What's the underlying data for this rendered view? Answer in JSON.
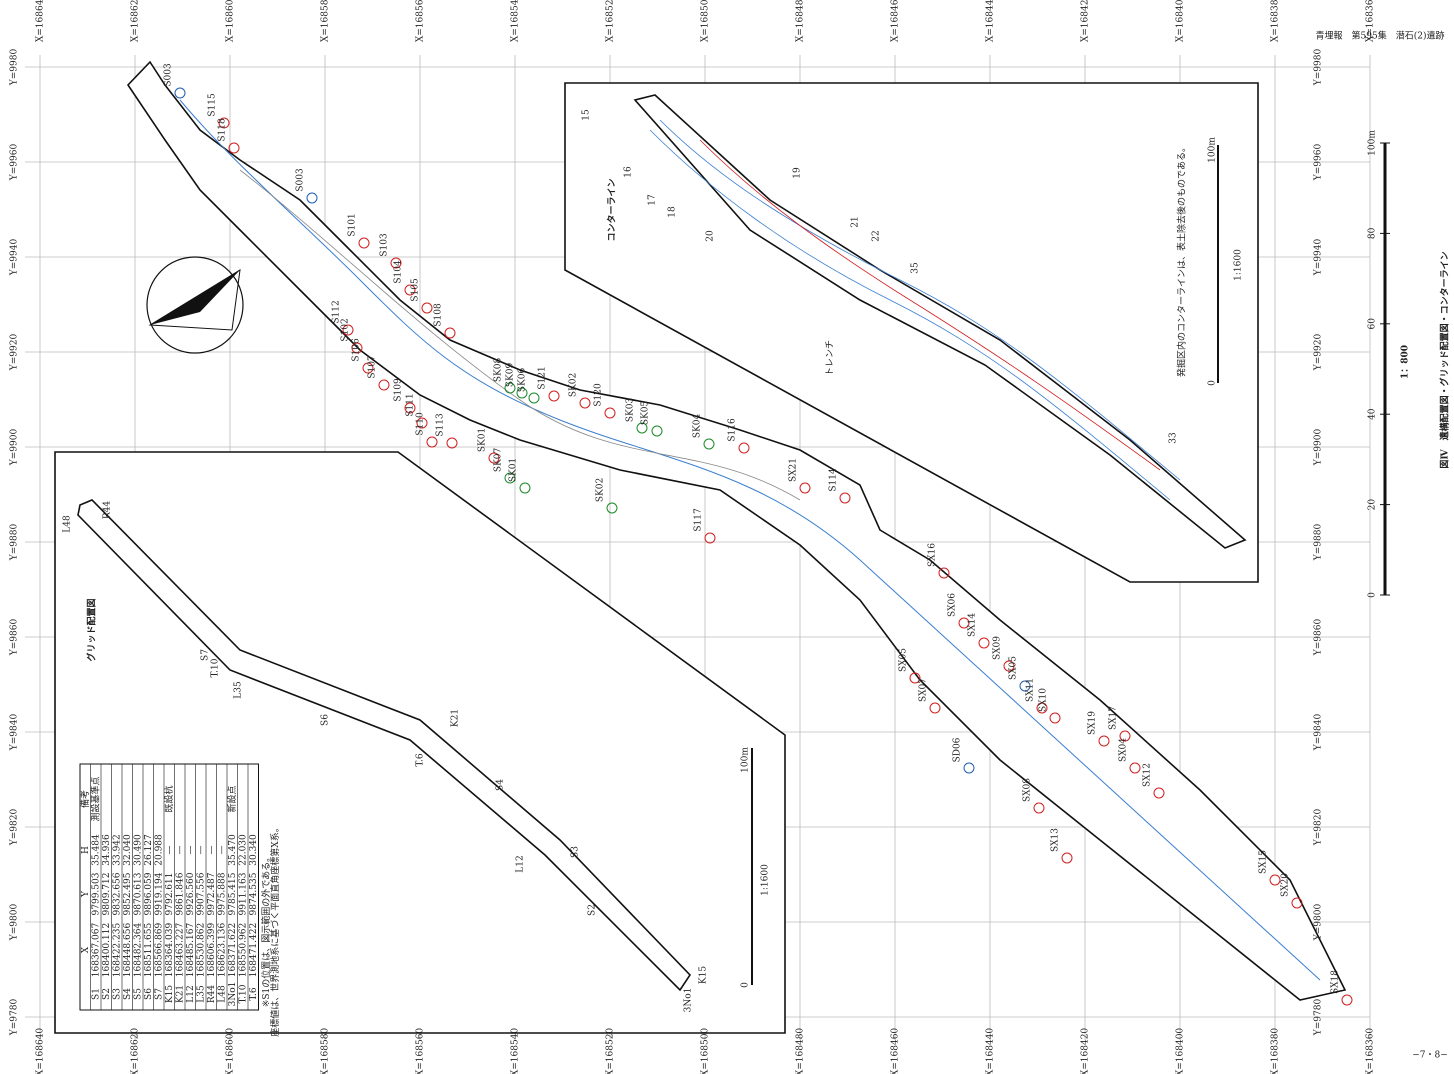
{
  "header": "青埋報　第595集　潜石(2)遺跡",
  "figure_title": "図Ⅳ　遺構配置図・グリッド配置図・コンターライン",
  "scale": {
    "ratio": "1：800",
    "ticks": [
      "0",
      "20",
      "40",
      "60",
      "80",
      "100m"
    ]
  },
  "page_number": "−7・8−",
  "x_grid": [
    "X=168640",
    "X=168620",
    "X=168600",
    "X=168580",
    "X=168560",
    "X=168540",
    "X=168520",
    "X=168500",
    "X=168480",
    "X=168460",
    "X=168440",
    "X=168420",
    "X=168400",
    "X=168380",
    "X=168360"
  ],
  "y_grid": [
    "Y=9980",
    "Y=9960",
    "Y=9940",
    "Y=9920",
    "Y=9900",
    "Y=9880",
    "Y=9860",
    "Y=9840",
    "Y=9820",
    "Y=9800",
    "Y=9780"
  ],
  "features": [
    {
      "label": "S003",
      "color": "#1f5fb0"
    },
    {
      "label": "S115",
      "color": "#d02020"
    },
    {
      "label": "S118",
      "color": "#d02020"
    },
    {
      "label": "S003",
      "color": "#1f5fb0"
    },
    {
      "label": "S101",
      "color": "#d02020"
    },
    {
      "label": "S103",
      "color": "#d02020"
    },
    {
      "label": "S104",
      "color": "#d02020"
    },
    {
      "label": "S105",
      "color": "#d02020"
    },
    {
      "label": "S108",
      "color": "#d02020"
    },
    {
      "label": "S112",
      "color": "#d02020"
    },
    {
      "label": "S102",
      "color": "#d02020"
    },
    {
      "label": "S106",
      "color": "#d02020"
    },
    {
      "label": "S107",
      "color": "#d02020"
    },
    {
      "label": "S109",
      "color": "#d02020"
    },
    {
      "label": "S111",
      "color": "#d02020"
    },
    {
      "label": "S110",
      "color": "#d02020"
    },
    {
      "label": "S113",
      "color": "#d02020"
    },
    {
      "label": "SK08",
      "color": "#1a8a2a"
    },
    {
      "label": "SK09",
      "color": "#1a8a2a"
    },
    {
      "label": "SK06",
      "color": "#1a8a2a"
    },
    {
      "label": "S121",
      "color": "#d02020"
    },
    {
      "label": "SK02",
      "color": "#d02020"
    },
    {
      "label": "S120",
      "color": "#d02020"
    },
    {
      "label": "SK03",
      "color": "#1a8a2a"
    },
    {
      "label": "SK05",
      "color": "#1a8a2a"
    },
    {
      "label": "SK01",
      "color": "#d02020"
    },
    {
      "label": "SK07",
      "color": "#1a8a2a"
    },
    {
      "label": "SK01",
      "color": "#1a8a2a"
    },
    {
      "label": "SK02",
      "color": "#1a8a2a"
    },
    {
      "label": "SK04",
      "color": "#1a8a2a"
    },
    {
      "label": "S116",
      "color": "#d02020"
    },
    {
      "label": "SX21",
      "color": "#d02020"
    },
    {
      "label": "S114",
      "color": "#d02020"
    },
    {
      "label": "S117",
      "color": "#d02020"
    },
    {
      "label": "SX16",
      "color": "#d02020"
    },
    {
      "label": "SX06",
      "color": "#d02020"
    },
    {
      "label": "SX14",
      "color": "#d02020"
    },
    {
      "label": "SX09",
      "color": "#d02020"
    },
    {
      "label": "SX05",
      "color": "#1f5fb0"
    },
    {
      "label": "SX11",
      "color": "#d02020"
    },
    {
      "label": "SX10",
      "color": "#d02020"
    },
    {
      "label": "SX05",
      "color": "#d02020"
    },
    {
      "label": "SX07",
      "color": "#d02020"
    },
    {
      "label": "SD06",
      "color": "#1f5fb0"
    },
    {
      "label": "SX19",
      "color": "#d02020"
    },
    {
      "label": "SX17",
      "color": "#d02020"
    },
    {
      "label": "SX04",
      "color": "#d02020"
    },
    {
      "label": "SX12",
      "color": "#d02020"
    },
    {
      "label": "SX08",
      "color": "#d02020"
    },
    {
      "label": "SX13",
      "color": "#d02020"
    },
    {
      "label": "SX15",
      "color": "#d02020"
    },
    {
      "label": "SX20",
      "color": "#d02020"
    },
    {
      "label": "SX18",
      "color": "#d02020"
    }
  ],
  "contour_inset": {
    "title": "コンターライン",
    "note": "発掘区内のコンターラインは、表土除去後のものである。",
    "scale": "1:1600",
    "bar": [
      "0",
      "100m"
    ],
    "labels": [
      "15",
      "16",
      "17",
      "18",
      "19",
      "20",
      "21",
      "22",
      "33",
      "35",
      "トレンチ"
    ]
  },
  "grid_inset": {
    "title": "グリッド配置図",
    "scale": "1:1600",
    "bar": [
      "0",
      "100m"
    ],
    "labels": [
      {
        "label": "L48",
        "color": "#d02020"
      },
      {
        "label": "R44",
        "color": "#d02020"
      },
      {
        "label": "S7",
        "color": "#1f5fb0"
      },
      {
        "label": "T.10",
        "color": "#1f5fb0"
      },
      {
        "label": "L35",
        "color": "#d02020"
      },
      {
        "label": "S6",
        "color": "#1f5fb0"
      },
      {
        "label": "K21",
        "color": "#d02020"
      },
      {
        "label": "T.6",
        "color": "#1a8a2a"
      },
      {
        "label": "S4",
        "color": "#1f5fb0"
      },
      {
        "label": "L12",
        "color": "#d02020"
      },
      {
        "label": "S3",
        "color": "#1f5fb0"
      },
      {
        "label": "S2",
        "color": "#1f5fb0"
      },
      {
        "label": "K15",
        "color": "#d02020"
      },
      {
        "label": "3No1",
        "color": "#1a8a2a"
      }
    ]
  },
  "table": {
    "header": [
      "",
      "X",
      "Y",
      "H",
      "備考"
    ],
    "rows": [
      [
        "S1",
        "168367.067",
        "9799.503",
        "35.484",
        "測設基準点"
      ],
      [
        "S2",
        "168400.112",
        "9809.712",
        "34.936",
        ""
      ],
      [
        "S3",
        "168422.235",
        "9832.656",
        "33.942",
        ""
      ],
      [
        "S4",
        "168448.656",
        "9852.495",
        "32.040",
        ""
      ],
      [
        "S5",
        "168482.364",
        "9870.613",
        "30.490",
        ""
      ],
      [
        "S6",
        "168511.655",
        "9896.059",
        "26.127",
        ""
      ],
      [
        "S7",
        "168566.869",
        "9919.194",
        "20.988",
        ""
      ],
      [
        "K15",
        "168364.039",
        "9792.611",
        "—",
        "既設杭"
      ],
      [
        "K21",
        "168463.227",
        "9861.846",
        "—",
        ""
      ],
      [
        "L12",
        "168485.167",
        "9926.560",
        "—",
        ""
      ],
      [
        "L35",
        "168530.862",
        "9907.556",
        "—",
        ""
      ],
      [
        "R44",
        "168606.399",
        "9972.487",
        "—",
        ""
      ],
      [
        "L48",
        "168623.136",
        "9975.888",
        "—",
        ""
      ],
      [
        "3No1",
        "168371.622",
        "9785.415",
        "35.470",
        "新設点"
      ],
      [
        "T.10",
        "168550.962",
        "9911.163",
        "22.030",
        ""
      ],
      [
        "T.6",
        "168471.422",
        "9874.535",
        "30.340",
        ""
      ]
    ],
    "notes": [
      "※S1の位置は、図示範囲の外である。",
      "座標値は、世界測地系に基づく平面直角座標第X系。"
    ]
  }
}
